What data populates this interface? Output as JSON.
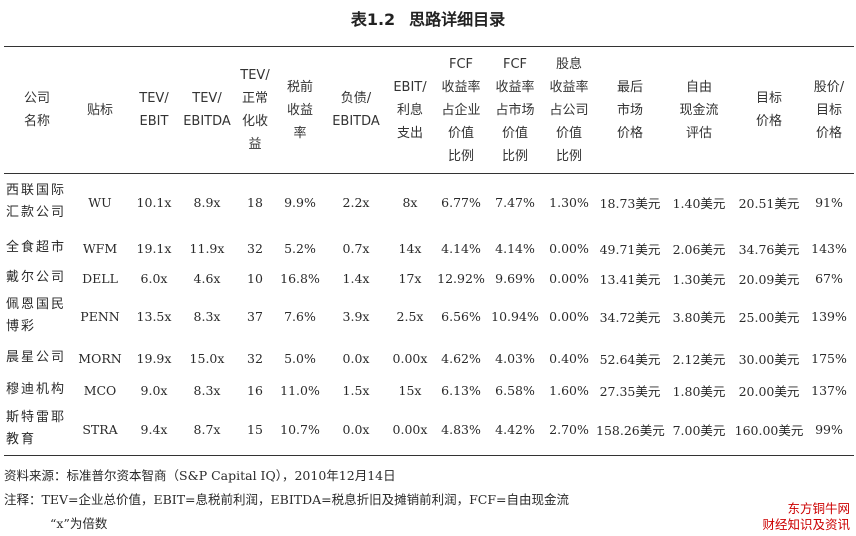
{
  "title": {
    "number": "表1.2",
    "text": "思路详细目录"
  },
  "headers": [
    "公司\n名称",
    "贴标",
    "TEV/\nEBIT",
    "TEV/\nEBITDA",
    "TEV/\n正常\n化收\n益",
    "税前\n收益\n率",
    "负债/\nEBITDA",
    "EBIT/\n利息\n支出",
    "FCF\n收益率\n占企业\n价值\n比例",
    "FCF\n收益率\n占市场\n价值\n比例",
    "股息\n收益率\n占公司\n价值\n比例",
    "最后\n市场\n价格",
    "自由\n现金流\n评估",
    "目标\n价格",
    "股价/\n目标\n价格"
  ],
  "rows": [
    [
      "西联国际\n汇款公司",
      "WU",
      "10.1x",
      "8.9x",
      "18",
      "9.9%",
      "2.2x",
      "8x",
      "6.77%",
      "7.47%",
      "1.30%",
      "18.73美元",
      "1.40美元",
      "20.51美元",
      "91%"
    ],
    [
      "全食超市",
      "WFM",
      "19.1x",
      "11.9x",
      "32",
      "5.2%",
      "0.7x",
      "14x",
      "4.14%",
      "4.14%",
      "0.00%",
      "49.71美元",
      "2.06美元",
      "34.76美元",
      "143%"
    ],
    [
      "戴尔公司",
      "DELL",
      "6.0x",
      "4.6x",
      "10",
      "16.8%",
      "1.4x",
      "17x",
      "12.92%",
      "9.69%",
      "0.00%",
      "13.41美元",
      "1.30美元",
      "20.09美元",
      "67%"
    ],
    [
      "佩恩国民\n博彩",
      "PENN",
      "13.5x",
      "8.3x",
      "37",
      "7.6%",
      "3.9x",
      "2.5x",
      "6.56%",
      "10.94%",
      "0.00%",
      "34.72美元",
      "3.80美元",
      "25.00美元",
      "139%"
    ],
    [
      "晨星公司",
      "MORN",
      "19.9x",
      "15.0x",
      "32",
      "5.0%",
      "0.0x",
      "0.00x",
      "4.62%",
      "4.03%",
      "0.40%",
      "52.64美元",
      "2.12美元",
      "30.00美元",
      "175%"
    ],
    [
      "穆迪机构",
      "MCO",
      "9.0x",
      "8.3x",
      "16",
      "11.0%",
      "1.5x",
      "15x",
      "6.13%",
      "6.58%",
      "1.60%",
      "27.35美元",
      "1.80美元",
      "20.00美元",
      "137%"
    ],
    [
      "斯特雷耶\n教育",
      "STRA",
      "9.4x",
      "8.7x",
      "15",
      "10.7%",
      "0.0x",
      "0.00x",
      "4.83%",
      "4.42%",
      "2.70%",
      "158.26美元",
      "7.00美元",
      "160.00美元",
      "99%"
    ]
  ],
  "notes": {
    "source": "资料来源：标准普尔资本智商（S&P Capital IQ），2010年12月14日",
    "note": "注释：TEV=企业总价值，EBIT=息税前利润，EBITDA=税息折旧及摊销前利润，FCF=自由现金流",
    "note2": "“x”为倍数"
  },
  "watermark": {
    "line1": "东方铜牛网",
    "line2": "财经知识及资讯",
    "color": "#cc0000"
  }
}
